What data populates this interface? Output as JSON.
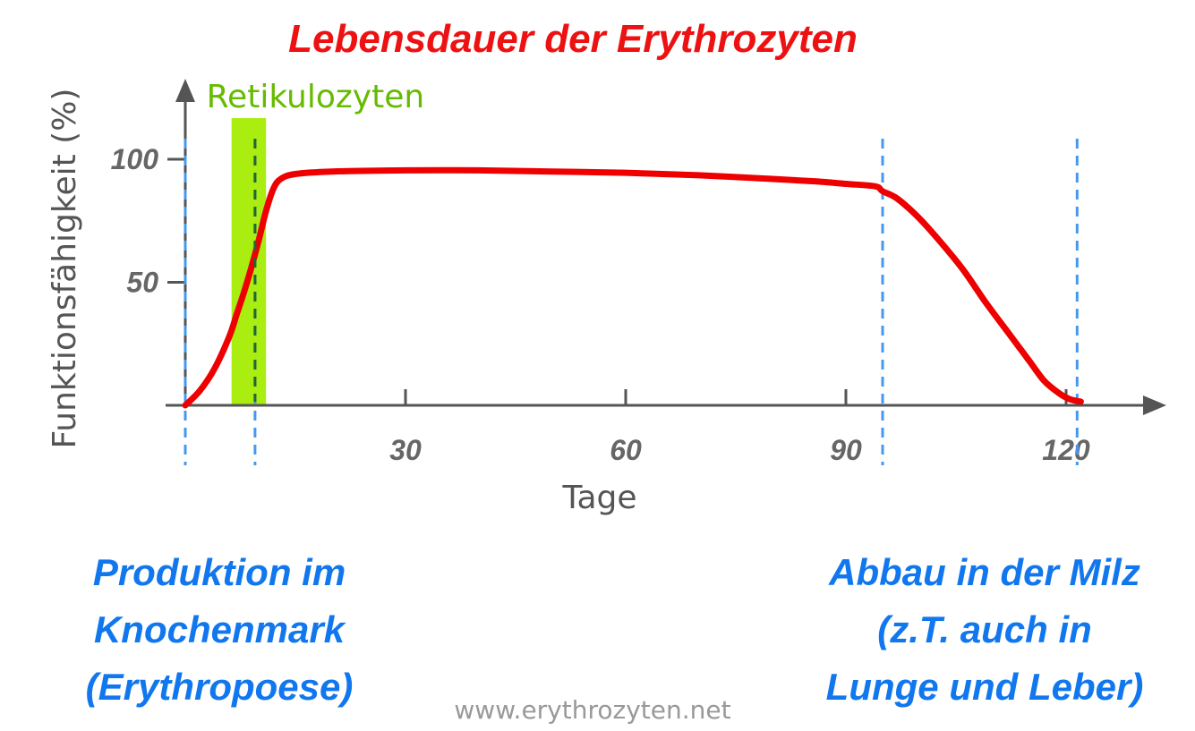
{
  "colors": {
    "title": "#ee1111",
    "curve": "#ee0000",
    "band": "#aaee11",
    "band_label": "#66bb00",
    "marker": "#4499ee",
    "axis": "#555555",
    "axis_text": "#555555",
    "tick_text": "#666666",
    "note": "#1177ee",
    "footer": "#999999",
    "retic_line": "#226633"
  },
  "chart_data": {
    "type": "line",
    "title": "Lebensdauer der Erythrozyten",
    "xlabel": "Tage",
    "ylabel": "Funktionsfähigkeit (%)",
    "xlim": [
      0,
      133
    ],
    "ylim": [
      0,
      100
    ],
    "x_ticks": [
      30,
      60,
      90,
      120
    ],
    "x_tick_labels": [
      "30",
      "60",
      "90",
      "120"
    ],
    "y_ticks": [
      50,
      100
    ],
    "y_tick_labels": [
      "50",
      "100"
    ],
    "grid": false,
    "series": [
      {
        "x": [
          0,
          2,
          4,
          6,
          7,
          8,
          9,
          10,
          11,
          12,
          13,
          15,
          20,
          30,
          40,
          50,
          60,
          70,
          80,
          86,
          90,
          94,
          95,
          97,
          100,
          103,
          106,
          109,
          112,
          115,
          117,
          119,
          120.5,
          122
        ],
        "y": [
          0,
          6,
          15,
          28,
          37,
          46,
          56,
          67,
          79,
          88,
          92,
          94,
          95,
          95.5,
          95.5,
          95,
          94.5,
          93.5,
          92,
          91,
          90,
          89,
          87,
          84,
          76,
          66,
          55,
          42,
          30,
          18,
          10,
          5,
          2.5,
          1.5
        ]
      }
    ],
    "band": {
      "label": "Retikulozyten",
      "x_range": [
        6.3,
        11
      ]
    },
    "marker_days": [
      0,
      9.5,
      95,
      121.5
    ],
    "reticulocyte_line_day": 9.5
  },
  "notes": {
    "left": [
      "Produktion im",
      "Knochenmark",
      "(Erythropoese)"
    ],
    "right": [
      "Abbau in der Milz",
      "(z.T. auch in",
      "Lunge und Leber)"
    ]
  },
  "footer": "www.erythrozyten.net"
}
